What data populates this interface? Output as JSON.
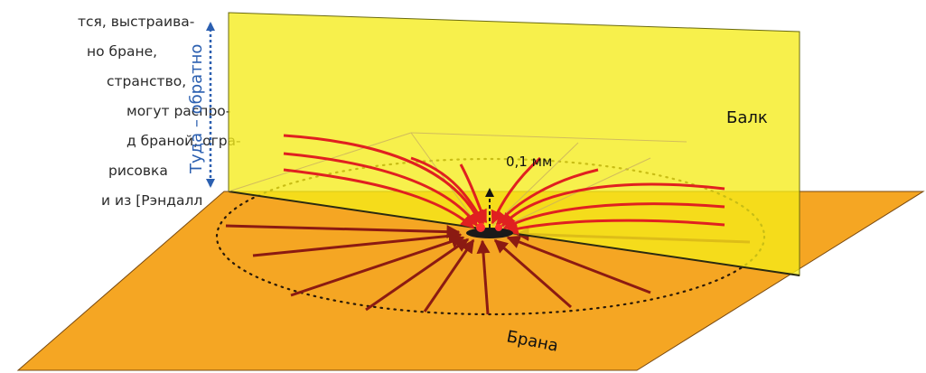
{
  "caption_lines": [
    "тся, выстраива-",
    "но бране,",
    "странство,",
    "могут распро-",
    "д браной, огра-",
    "рисовка",
    "и из [Рэндалл"
  ],
  "labels": {
    "bulk": "Балк",
    "brane": "Брана",
    "distance": "0,1 мм",
    "direction": "Туда – обратно"
  },
  "colors": {
    "brane_fill": "#f5a623",
    "bulk_fill": "#f7ef3c",
    "field_line_bulk": "#e02020",
    "field_line_brane": "#8b1a12",
    "axis_arrow": "#2b5fb0",
    "source": "#1a1a1a"
  }
}
